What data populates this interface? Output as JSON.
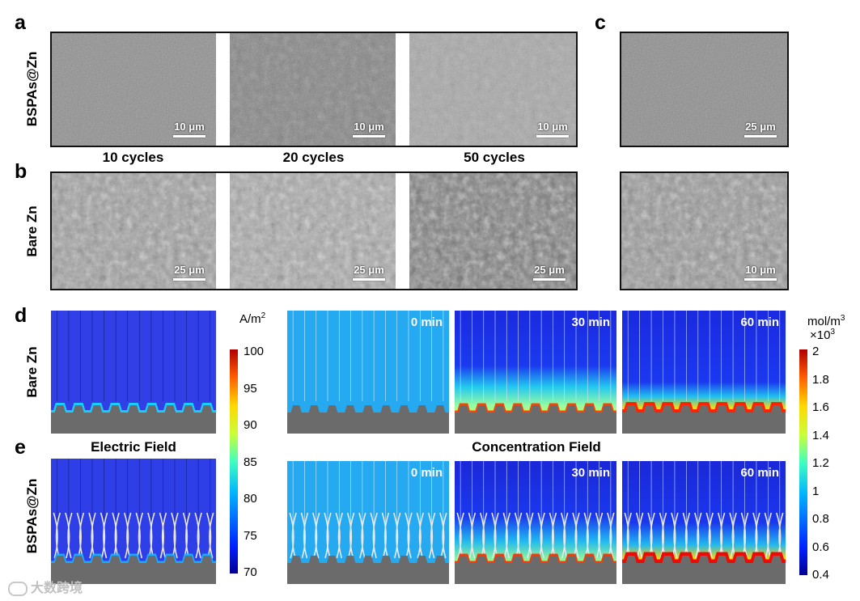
{
  "panel_labels": {
    "a": "a",
    "b": "b",
    "c": "c",
    "d": "d",
    "e": "e"
  },
  "row_labels": {
    "bspas_zn": "BSPAs@Zn",
    "bare_zn": "Bare Zn"
  },
  "cycle_labels": [
    "10 cycles",
    "20 cycles",
    "50 cycles"
  ],
  "scale_bars": {
    "a": [
      "10 μm",
      "10 μm",
      "10 μm"
    ],
    "b": [
      "25 μm",
      "25 μm",
      "25 μm"
    ],
    "c_top": "25 μm",
    "c_bottom": "10 μm"
  },
  "field_titles": {
    "electric": "Electric Field",
    "concentration": "Concentration Field"
  },
  "time_labels": [
    "0 min",
    "30 min",
    "60 min"
  ],
  "colorbar_current": {
    "unit": "A/m",
    "unit_sup": "2",
    "ticks": [
      "100",
      "95",
      "90",
      "85",
      "80",
      "75",
      "70"
    ]
  },
  "colorbar_conc": {
    "unit": "mol/m",
    "unit_sup": "3",
    "multiplier": "×10",
    "multiplier_sup": "3",
    "ticks": [
      "2",
      "1.8",
      "1.6",
      "1.4",
      "1.2",
      "1",
      "0.8",
      "0.6",
      "0.4"
    ]
  },
  "watermark": "大数跨境",
  "colors": {
    "sem_gray": "#8a8a8a",
    "substrate": "#6e6e6e",
    "field_blue": "#2233dd",
    "conc_light": "#22a8f0"
  }
}
